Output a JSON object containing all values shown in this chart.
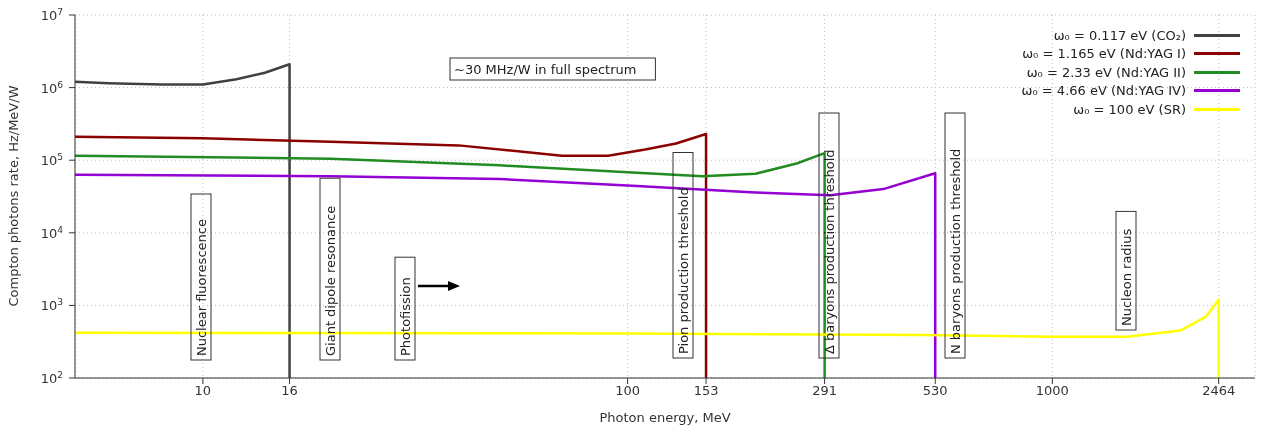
{
  "chart_data": {
    "type": "line",
    "xlabel": "Photon energy, MeV",
    "ylabel": "Compton photons rate, Hz/MeV/W",
    "log": "xy",
    "grid": true,
    "legend": "top right",
    "marker": "none",
    "line_style": "solid",
    "xlim": [
      5,
      3000
    ],
    "xticks": [
      10,
      16,
      100,
      153,
      291,
      530,
      1000,
      2464
    ],
    "ylim": [
      100,
      10000000
    ],
    "yticks": [
      {
        "value": 100,
        "label": "10$^{2}$"
      },
      {
        "value": 1000,
        "label": "10$^{3}$"
      },
      {
        "value": 10000,
        "label": "10$^{4}$"
      },
      {
        "value": 100000,
        "label": "10$^{5}$"
      },
      {
        "value": 1000000,
        "label": "10$^{6}$"
      },
      {
        "value": 10000000,
        "label": "10$^{7}$"
      }
    ],
    "series": [
      {
        "name": "ω₀ = 0.117 eV (CO₂)",
        "color": "#404040",
        "x": [
          5,
          6,
          8,
          10,
          12,
          14,
          16,
          16
        ],
        "values": [
          1200000,
          1150000,
          1100000,
          1100000,
          1300000,
          1600000,
          2100000,
          100
        ]
      },
      {
        "name": "ω₀ = 1.165 eV (Nd:YAG I)",
        "color": "#8b0000",
        "x": [
          5,
          10,
          20,
          40,
          70,
          90,
          110,
          130,
          153,
          153
        ],
        "values": [
          210000,
          200000,
          180000,
          160000,
          115000,
          115000,
          140000,
          170000,
          230000,
          100
        ]
      },
      {
        "name": "ω₀ = 2.33 eV (Nd:YAG II)",
        "color": "#228b22",
        "x": [
          5,
          20,
          50,
          100,
          150,
          200,
          250,
          291,
          291
        ],
        "values": [
          115000,
          105000,
          85000,
          68000,
          60000,
          65000,
          90000,
          125000,
          100
        ]
      },
      {
        "name": "ω₀ = 4.66 eV (Nd:YAG IV)",
        "color": "#9400d3",
        "x": [
          5,
          20,
          50,
          100,
          200,
          300,
          400,
          530,
          530
        ],
        "values": [
          63000,
          60000,
          55000,
          45000,
          36000,
          33000,
          40000,
          66000,
          100
        ]
      },
      {
        "name": "ω₀ = 100 eV (SR)",
        "color": "#ffff00",
        "x": [
          5,
          100,
          500,
          1000,
          1500,
          2000,
          2300,
          2464,
          2464
        ],
        "values": [
          420,
          410,
          390,
          370,
          370,
          450,
          700,
          1200,
          100
        ]
      }
    ],
    "annotations": [
      "Nuclear fluorescence",
      "Giant dipole resonance",
      "Photofission",
      "Pion production threshold",
      "Δ baryons production threshold",
      "N baryons production threshold",
      "Nucleon radius",
      "~30 MHz/W in full spectrum"
    ]
  }
}
